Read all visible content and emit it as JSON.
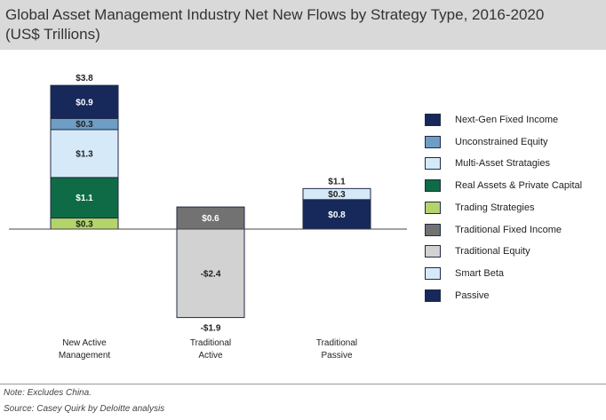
{
  "title": {
    "line1": "Global Asset Management Industry Net New Flows by Strategy Type, 2016-2020",
    "line2": "(US$ Trillions)"
  },
  "notes": {
    "note": "Note: Excludes China.",
    "source": "Source: Casey Quirk by Deloitte analysis"
  },
  "chart_data": {
    "type": "bar",
    "stacked": true,
    "unit": "US$ Trillions",
    "categories": [
      "New Active Management",
      "Traditional Active",
      "Traditional Passive"
    ],
    "category_label_lines": [
      [
        "New Active",
        "Management"
      ],
      [
        "Traditional",
        "Active"
      ],
      [
        "Traditional",
        "Passive"
      ]
    ],
    "totals": [
      {
        "category": "New Active Management",
        "value": 3.8,
        "label": "$3.8"
      },
      {
        "category": "Traditional Active",
        "value": -1.9,
        "label": "-$1.9"
      },
      {
        "category": "Traditional Passive",
        "value": 1.1,
        "label": "$1.1"
      }
    ],
    "series": [
      {
        "name": "Next-Gen Fixed Income",
        "color": "#17295a",
        "values": [
          0.9,
          0,
          0
        ],
        "labels": [
          "$0.9",
          "",
          ""
        ]
      },
      {
        "name": "Unconstrained Equity",
        "color": "#6e9dc6",
        "values": [
          0.3,
          0,
          0
        ],
        "labels": [
          "$0.3",
          "",
          ""
        ]
      },
      {
        "name": "Multi-Asset Stratagies",
        "color": "#d6e9f8",
        "values": [
          1.3,
          0,
          0
        ],
        "labels": [
          "$1.3",
          "",
          ""
        ]
      },
      {
        "name": "Real Assets & Private Capital",
        "color": "#0f6b46",
        "values": [
          1.1,
          0,
          0
        ],
        "labels": [
          "$1.1",
          "",
          ""
        ]
      },
      {
        "name": "Trading Strategies",
        "color": "#b3d46b",
        "values": [
          0.3,
          0,
          0
        ],
        "labels": [
          "$0.3",
          "",
          ""
        ]
      },
      {
        "name": "Traditional Fixed Income",
        "color": "#727272",
        "values": [
          0,
          0.6,
          0
        ],
        "labels": [
          "",
          "$0.6",
          ""
        ]
      },
      {
        "name": "Traditional Equity",
        "color": "#d2d2d2",
        "values": [
          0,
          -2.4,
          0
        ],
        "labels": [
          "",
          "-$2.4",
          ""
        ]
      },
      {
        "name": "Smart Beta",
        "color": "#d6e9f8",
        "values": [
          0,
          0,
          0.3
        ],
        "labels": [
          "",
          "",
          "$0.3"
        ]
      },
      {
        "name": "Passive",
        "color": "#17295a",
        "values": [
          0,
          0,
          0.8
        ],
        "labels": [
          "",
          "",
          "$0.8"
        ]
      }
    ],
    "legend_position": "right",
    "grid": false,
    "ylim": [
      -2.6,
      3.9
    ]
  }
}
